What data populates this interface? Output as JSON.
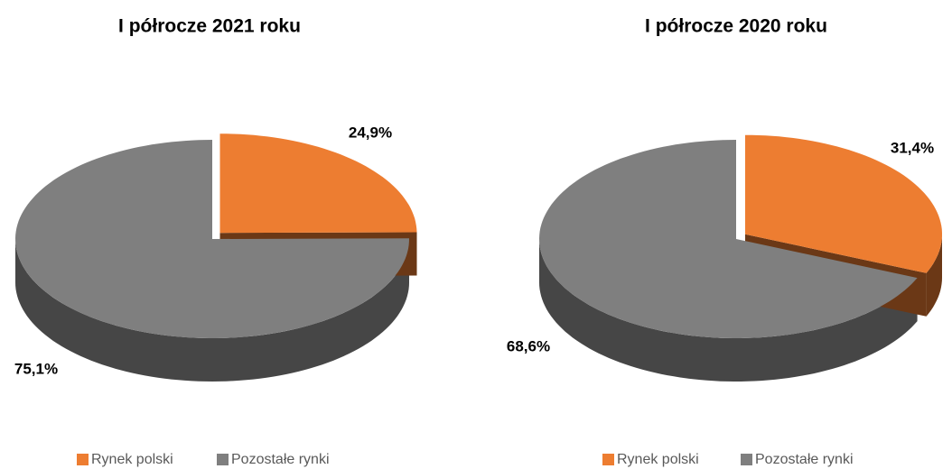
{
  "chart_data": [
    {
      "type": "pie3d",
      "title": "I półrocze 2021 roku",
      "categories": [
        "Rynek polski",
        "Pozostałe rynki"
      ],
      "values": [
        24.9,
        75.1
      ],
      "value_labels": [
        "24,9%",
        "75,1%"
      ],
      "colors": [
        "#ED7D31",
        "#7F7F7F"
      ]
    },
    {
      "type": "pie3d",
      "title": "I półrocze 2020 roku",
      "categories": [
        "Rynek polski",
        "Pozostałe rynki"
      ],
      "values": [
        31.4,
        68.6
      ],
      "value_labels": [
        "31,4%",
        "68,6%"
      ],
      "colors": [
        "#ED7D31",
        "#7F7F7F"
      ]
    }
  ]
}
